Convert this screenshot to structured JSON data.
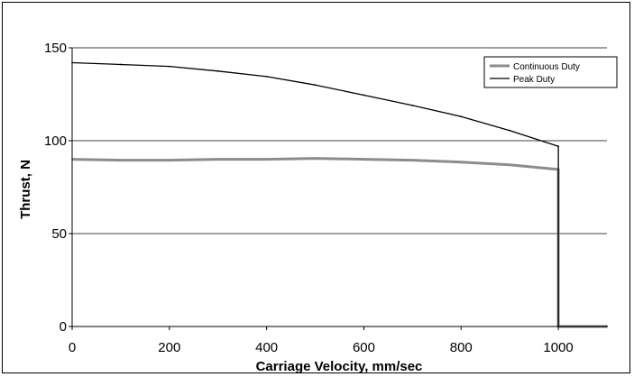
{
  "chart_data": {
    "type": "line",
    "title": "",
    "xlabel": "Carriage Velocity, mm/sec",
    "ylabel": "Thrust, N",
    "xlim": [
      0,
      1100
    ],
    "ylim": [
      0,
      150
    ],
    "xticks": [
      0,
      200,
      400,
      600,
      800,
      1000
    ],
    "yticks": [
      0,
      50,
      100,
      150
    ],
    "grid": "horizontal",
    "legend_position": "top-right",
    "series": [
      {
        "name": "Continuous Duty",
        "color": "#8c8c8c",
        "points": [
          [
            0,
            90
          ],
          [
            100,
            89.5
          ],
          [
            200,
            89.5
          ],
          [
            300,
            90
          ],
          [
            400,
            90
          ],
          [
            500,
            90.5
          ],
          [
            600,
            90
          ],
          [
            700,
            89.5
          ],
          [
            800,
            88.5
          ],
          [
            900,
            87
          ],
          [
            1000,
            84.5
          ],
          [
            1000,
            0
          ],
          [
            1100,
            0
          ]
        ]
      },
      {
        "name": "Peak Duty",
        "color": "#000000",
        "points": [
          [
            0,
            142
          ],
          [
            100,
            141
          ],
          [
            200,
            140
          ],
          [
            300,
            137.5
          ],
          [
            400,
            134.5
          ],
          [
            500,
            130
          ],
          [
            600,
            124.5
          ],
          [
            700,
            119
          ],
          [
            800,
            113
          ],
          [
            900,
            105.5
          ],
          [
            1000,
            97
          ],
          [
            1000,
            0
          ],
          [
            1100,
            0
          ]
        ]
      }
    ]
  }
}
